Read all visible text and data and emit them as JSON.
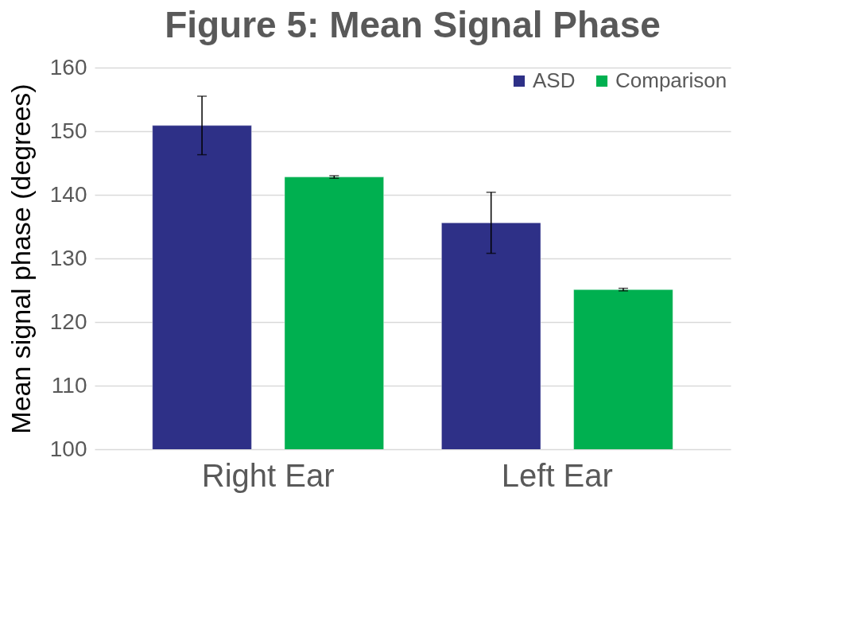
{
  "chart_data": {
    "type": "bar",
    "title": "Figure 5:  Mean Signal Phase",
    "ylabel": "Mean signal phase  (degrees)",
    "categories": [
      "Right Ear",
      "Left Ear"
    ],
    "series": [
      {
        "name": "ASD",
        "color": "#2e3087",
        "values": [
          150.9,
          135.6
        ],
        "errors": [
          4.6,
          4.8
        ]
      },
      {
        "name": "Comparison",
        "color": "#00b050",
        "values": [
          142.8,
          125.1
        ],
        "errors": [
          0.2,
          0.2
        ]
      }
    ],
    "ylim": [
      100,
      160
    ],
    "yticks": [
      100,
      110,
      120,
      130,
      140,
      150,
      160
    ],
    "grid": "y",
    "legend": "top right"
  }
}
